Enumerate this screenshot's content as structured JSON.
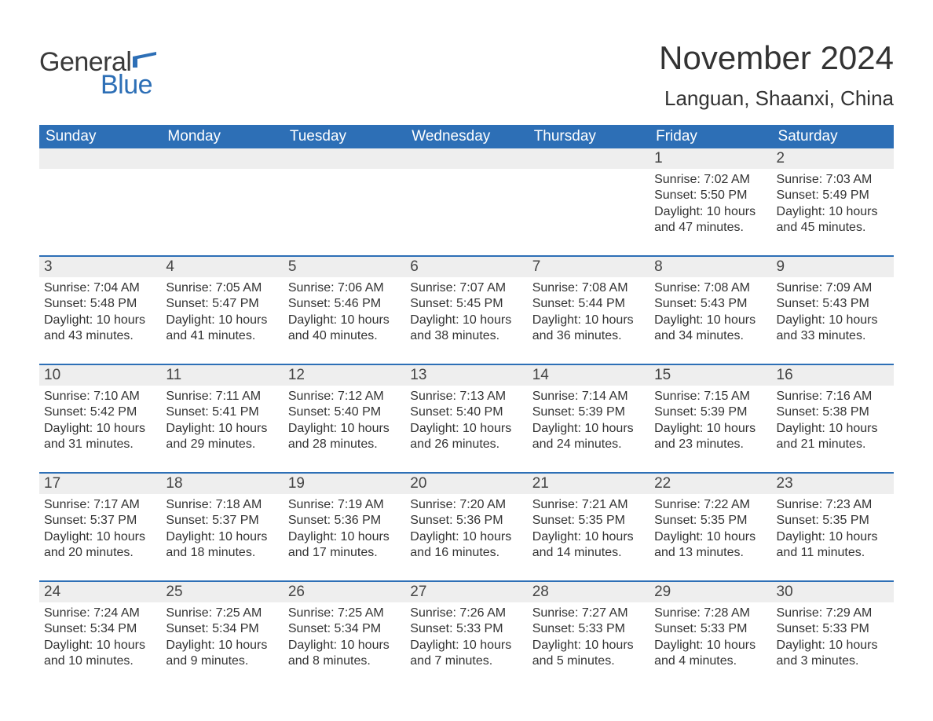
{
  "brand": {
    "word1": "General",
    "word2": "Blue",
    "word1_color": "#3a3a3a",
    "word2_color": "#2d6fb6",
    "flag_color": "#2d6fb6"
  },
  "title": {
    "month": "November 2024",
    "location": "Languan, Shaanxi, China",
    "month_fontsize": 42,
    "location_fontsize": 26,
    "color": "#333333"
  },
  "calendar": {
    "header_bg": "#2d6fb6",
    "header_text_color": "#ffffff",
    "week_border_color": "#2d6fb6",
    "daynum_bg": "#eeeeee",
    "body_text_color": "#333333",
    "body_fontsize": 16,
    "columns": [
      "Sunday",
      "Monday",
      "Tuesday",
      "Wednesday",
      "Thursday",
      "Friday",
      "Saturday"
    ],
    "weeks": [
      [
        null,
        null,
        null,
        null,
        null,
        {
          "n": "1",
          "sunrise": "Sunrise: 7:02 AM",
          "sunset": "Sunset: 5:50 PM",
          "daylight": "Daylight: 10 hours and 47 minutes."
        },
        {
          "n": "2",
          "sunrise": "Sunrise: 7:03 AM",
          "sunset": "Sunset: 5:49 PM",
          "daylight": "Daylight: 10 hours and 45 minutes."
        }
      ],
      [
        {
          "n": "3",
          "sunrise": "Sunrise: 7:04 AM",
          "sunset": "Sunset: 5:48 PM",
          "daylight": "Daylight: 10 hours and 43 minutes."
        },
        {
          "n": "4",
          "sunrise": "Sunrise: 7:05 AM",
          "sunset": "Sunset: 5:47 PM",
          "daylight": "Daylight: 10 hours and 41 minutes."
        },
        {
          "n": "5",
          "sunrise": "Sunrise: 7:06 AM",
          "sunset": "Sunset: 5:46 PM",
          "daylight": "Daylight: 10 hours and 40 minutes."
        },
        {
          "n": "6",
          "sunrise": "Sunrise: 7:07 AM",
          "sunset": "Sunset: 5:45 PM",
          "daylight": "Daylight: 10 hours and 38 minutes."
        },
        {
          "n": "7",
          "sunrise": "Sunrise: 7:08 AM",
          "sunset": "Sunset: 5:44 PM",
          "daylight": "Daylight: 10 hours and 36 minutes."
        },
        {
          "n": "8",
          "sunrise": "Sunrise: 7:08 AM",
          "sunset": "Sunset: 5:43 PM",
          "daylight": "Daylight: 10 hours and 34 minutes."
        },
        {
          "n": "9",
          "sunrise": "Sunrise: 7:09 AM",
          "sunset": "Sunset: 5:43 PM",
          "daylight": "Daylight: 10 hours and 33 minutes."
        }
      ],
      [
        {
          "n": "10",
          "sunrise": "Sunrise: 7:10 AM",
          "sunset": "Sunset: 5:42 PM",
          "daylight": "Daylight: 10 hours and 31 minutes."
        },
        {
          "n": "11",
          "sunrise": "Sunrise: 7:11 AM",
          "sunset": "Sunset: 5:41 PM",
          "daylight": "Daylight: 10 hours and 29 minutes."
        },
        {
          "n": "12",
          "sunrise": "Sunrise: 7:12 AM",
          "sunset": "Sunset: 5:40 PM",
          "daylight": "Daylight: 10 hours and 28 minutes."
        },
        {
          "n": "13",
          "sunrise": "Sunrise: 7:13 AM",
          "sunset": "Sunset: 5:40 PM",
          "daylight": "Daylight: 10 hours and 26 minutes."
        },
        {
          "n": "14",
          "sunrise": "Sunrise: 7:14 AM",
          "sunset": "Sunset: 5:39 PM",
          "daylight": "Daylight: 10 hours and 24 minutes."
        },
        {
          "n": "15",
          "sunrise": "Sunrise: 7:15 AM",
          "sunset": "Sunset: 5:39 PM",
          "daylight": "Daylight: 10 hours and 23 minutes."
        },
        {
          "n": "16",
          "sunrise": "Sunrise: 7:16 AM",
          "sunset": "Sunset: 5:38 PM",
          "daylight": "Daylight: 10 hours and 21 minutes."
        }
      ],
      [
        {
          "n": "17",
          "sunrise": "Sunrise: 7:17 AM",
          "sunset": "Sunset: 5:37 PM",
          "daylight": "Daylight: 10 hours and 20 minutes."
        },
        {
          "n": "18",
          "sunrise": "Sunrise: 7:18 AM",
          "sunset": "Sunset: 5:37 PM",
          "daylight": "Daylight: 10 hours and 18 minutes."
        },
        {
          "n": "19",
          "sunrise": "Sunrise: 7:19 AM",
          "sunset": "Sunset: 5:36 PM",
          "daylight": "Daylight: 10 hours and 17 minutes."
        },
        {
          "n": "20",
          "sunrise": "Sunrise: 7:20 AM",
          "sunset": "Sunset: 5:36 PM",
          "daylight": "Daylight: 10 hours and 16 minutes."
        },
        {
          "n": "21",
          "sunrise": "Sunrise: 7:21 AM",
          "sunset": "Sunset: 5:35 PM",
          "daylight": "Daylight: 10 hours and 14 minutes."
        },
        {
          "n": "22",
          "sunrise": "Sunrise: 7:22 AM",
          "sunset": "Sunset: 5:35 PM",
          "daylight": "Daylight: 10 hours and 13 minutes."
        },
        {
          "n": "23",
          "sunrise": "Sunrise: 7:23 AM",
          "sunset": "Sunset: 5:35 PM",
          "daylight": "Daylight: 10 hours and 11 minutes."
        }
      ],
      [
        {
          "n": "24",
          "sunrise": "Sunrise: 7:24 AM",
          "sunset": "Sunset: 5:34 PM",
          "daylight": "Daylight: 10 hours and 10 minutes."
        },
        {
          "n": "25",
          "sunrise": "Sunrise: 7:25 AM",
          "sunset": "Sunset: 5:34 PM",
          "daylight": "Daylight: 10 hours and 9 minutes."
        },
        {
          "n": "26",
          "sunrise": "Sunrise: 7:25 AM",
          "sunset": "Sunset: 5:34 PM",
          "daylight": "Daylight: 10 hours and 8 minutes."
        },
        {
          "n": "27",
          "sunrise": "Sunrise: 7:26 AM",
          "sunset": "Sunset: 5:33 PM",
          "daylight": "Daylight: 10 hours and 7 minutes."
        },
        {
          "n": "28",
          "sunrise": "Sunrise: 7:27 AM",
          "sunset": "Sunset: 5:33 PM",
          "daylight": "Daylight: 10 hours and 5 minutes."
        },
        {
          "n": "29",
          "sunrise": "Sunrise: 7:28 AM",
          "sunset": "Sunset: 5:33 PM",
          "daylight": "Daylight: 10 hours and 4 minutes."
        },
        {
          "n": "30",
          "sunrise": "Sunrise: 7:29 AM",
          "sunset": "Sunset: 5:33 PM",
          "daylight": "Daylight: 10 hours and 3 minutes."
        }
      ]
    ]
  }
}
